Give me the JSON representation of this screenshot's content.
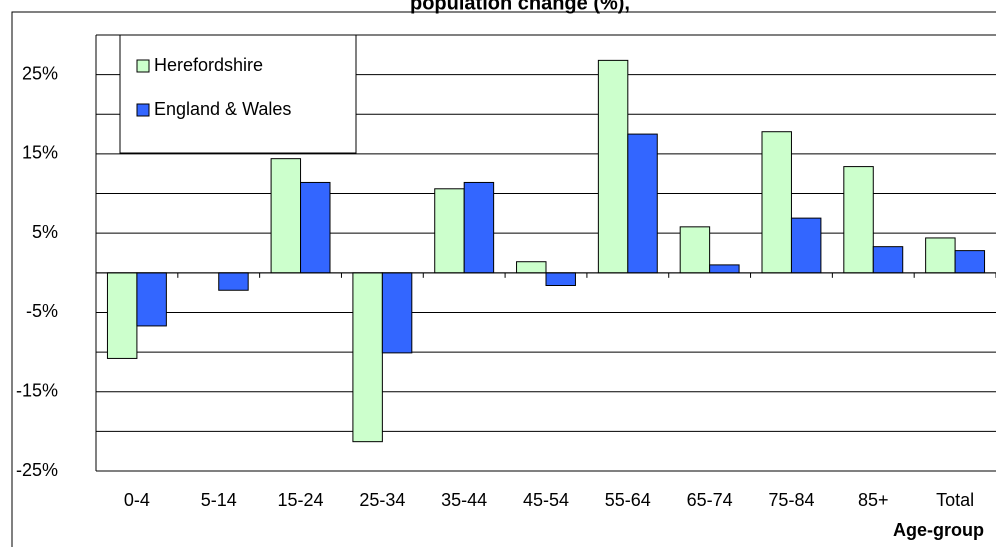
{
  "chart_data": {
    "type": "bar",
    "title": "population change (%),",
    "x_label": "Age-group",
    "categories": [
      "0-4",
      "5-14",
      "15-24",
      "25-34",
      "35-44",
      "45-54",
      "55-64",
      "65-74",
      "75-84",
      "85+",
      "Total"
    ],
    "series": [
      {
        "name": "Herefordshire",
        "color": "#ccffcc",
        "values": [
          -10.8,
          0,
          14.4,
          -21.3,
          10.6,
          1.4,
          26.8,
          5.8,
          17.8,
          13.4,
          4.4
        ]
      },
      {
        "name": "England & Wales",
        "color": "#3366ff",
        "values": [
          -6.7,
          -2.2,
          11.4,
          -10.1,
          11.4,
          -1.6,
          17.5,
          1.0,
          6.9,
          3.3,
          2.8
        ]
      }
    ],
    "ylim": [
      -25,
      30
    ],
    "yticks": [
      {
        "value": -25,
        "label": "-25%"
      },
      {
        "value": -15,
        "label": "-15%"
      },
      {
        "value": -5,
        "label": "-5%"
      },
      {
        "value": 5,
        "label": "5%"
      },
      {
        "value": 15,
        "label": "15%"
      },
      {
        "value": 25,
        "label": "25%"
      }
    ],
    "ygrid": [
      -20,
      -10,
      0,
      10,
      20,
      30
    ],
    "grid": true,
    "legend": "top-left"
  }
}
